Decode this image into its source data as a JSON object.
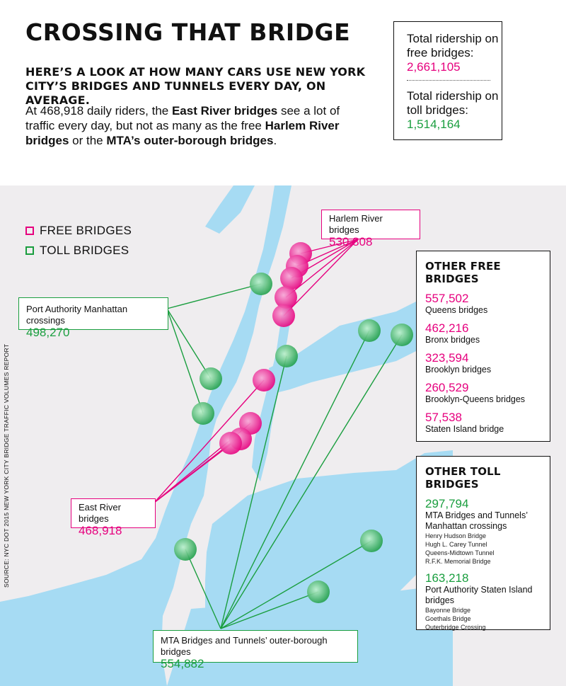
{
  "title": "CROSSING THAT BRIDGE",
  "subtitle": "HERE’S A LOOK AT HOW MANY CARS USE NEW YORK CITY’S BRIDGES AND TUNNELS EVERY DAY, ON AVERAGE.",
  "intro": {
    "p1": "At 468,918 daily riders, the ",
    "b1": "East River bridges",
    "p2": " see a lot of traffic every day, but not as many as the free ",
    "b2": "Harlem River bridges",
    "p3": " or the ",
    "b3": "MTA’s outer-borough bridges",
    "p4": "."
  },
  "totals": {
    "free_label": "Total ridership on free bridges:",
    "free_value": "2,661,105",
    "toll_label": "Total ridership on toll bridges:",
    "toll_value": "1,514,164"
  },
  "legend": {
    "free": "FREE BRIDGES",
    "toll": "TOLL BRIDGES"
  },
  "colors": {
    "free": "#e6007e",
    "toll": "#1a9e3f",
    "water": "#a6dbf3",
    "land": "#efedef"
  },
  "callouts": {
    "harlem": {
      "label": "Harlem River bridges",
      "value": "530,808"
    },
    "port_authority": {
      "label": "Port Authority Manhattan crossings",
      "value": "498,270"
    },
    "east_river": {
      "label": "East River bridges",
      "value": "468,918"
    },
    "mta_outer": {
      "label": "MTA Bridges and Tunnels’ outer-borough bridges",
      "value": "554,882"
    }
  },
  "other_free": {
    "heading": "OTHER FREE BRIDGES",
    "items": [
      {
        "value": "557,502",
        "label": "Queens bridges"
      },
      {
        "value": "462,216",
        "label": "Bronx bridges"
      },
      {
        "value": "323,594",
        "label": "Brooklyn bridges"
      },
      {
        "value": "260,529",
        "label": "Brooklyn-Queens bridges"
      },
      {
        "value": "57,538",
        "label": "Staten Island bridge"
      }
    ]
  },
  "other_toll": {
    "heading": "OTHER TOLL BRIDGES",
    "items": [
      {
        "value": "297,794",
        "label": "MTA Bridges and Tunnels’ Manhattan crossings",
        "subs": [
          "Henry Hudson Bridge",
          "Hugh L. Carey Tunnel",
          "Queens-Midtown Tunnel",
          "R.F.K. Memorial Bridge"
        ]
      },
      {
        "value": "163,218",
        "label": "Port Authority Staten Island bridges",
        "subs": [
          "Bayonne Bridge",
          "Goethals Bridge",
          "Outerbridge Crossing"
        ]
      }
    ]
  },
  "source": "SOURCE: NYC DOT 2015 NEW YORK CITY BRIDGE TRAFFIC VOLUMES REPORT"
}
